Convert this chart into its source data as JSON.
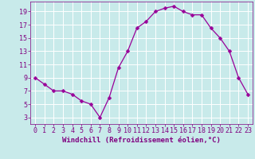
{
  "x": [
    0,
    1,
    2,
    3,
    4,
    5,
    6,
    7,
    8,
    9,
    10,
    11,
    12,
    13,
    14,
    15,
    16,
    17,
    18,
    19,
    20,
    21,
    22,
    23
  ],
  "y": [
    9,
    8,
    7,
    7,
    6.5,
    5.5,
    5,
    3,
    6,
    10.5,
    13,
    16.5,
    17.5,
    19,
    19.5,
    19.8,
    19,
    18.5,
    18.5,
    16.5,
    15,
    13,
    9,
    6.5
  ],
  "line_color": "#990099",
  "marker": "D",
  "marker_size": 2.5,
  "bg_color": "#c8eaea",
  "grid_color": "#b0d8d8",
  "xlabel": "Windchill (Refroidissement éolien,°C)",
  "xlabel_color": "#800080",
  "xlabel_fontsize": 6.5,
  "tick_color": "#800080",
  "tick_fontsize": 6,
  "ylim": [
    2,
    20.5
  ],
  "xlim": [
    -0.5,
    23.5
  ],
  "yticks": [
    3,
    5,
    7,
    9,
    11,
    13,
    15,
    17,
    19
  ],
  "xticks": [
    0,
    1,
    2,
    3,
    4,
    5,
    6,
    7,
    8,
    9,
    10,
    11,
    12,
    13,
    14,
    15,
    16,
    17,
    18,
    19,
    20,
    21,
    22,
    23
  ]
}
